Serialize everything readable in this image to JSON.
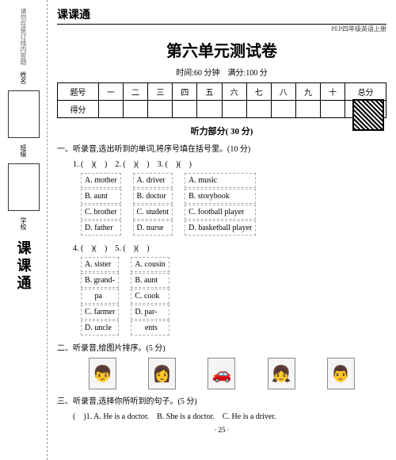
{
  "brand": "课课通",
  "header_sub": "PEP四年级英语上册",
  "title": "第六单元测试卷",
  "meta_time": "时间:60 分钟",
  "meta_score": "满分:100 分",
  "table": {
    "row1": [
      "题号",
      "一",
      "二",
      "三",
      "四",
      "五",
      "六",
      "七",
      "八",
      "九",
      "十",
      "总分"
    ],
    "row2_head": "得分"
  },
  "section_listening": "听力部分( 30 分)",
  "q1": {
    "head": "一、听录音,选出听到的单词,将序号填在括号里。(10 分)",
    "nums": "1. (　)(　)　2. (　)(　)　3. (　)(　)",
    "col1": [
      "A. mother",
      "B. aunt",
      "C. brother",
      "D. father"
    ],
    "col2": [
      "A. driver",
      "B. doctor",
      "C. student",
      "D. nurse"
    ],
    "col3": [
      "A. music",
      "B. storybook",
      "C. football player",
      "D. basketball player"
    ],
    "nums2": "4. (　)(　)　5. (　)(　)",
    "col4": [
      "A. sister",
      "B. grand-",
      "　 pa",
      "C. farmer",
      "D. uncle"
    ],
    "col5": [
      "A. cousin",
      "B. aunt",
      "C. cook",
      "D. par-",
      "　 ents"
    ]
  },
  "q2": {
    "head": "二、听录音,给图片排序。(5 分)"
  },
  "q3": {
    "head": "三、听录音,选择你所听到的句子。(5 分)",
    "line": "(　)1. A. He is a doctor.　B. She is a doctor.　C. He is a driver."
  },
  "page_num": "· 25 ·",
  "left": {
    "note": "请勿在装订线内答题",
    "school": "学校",
    "class": "班级",
    "name": "姓名",
    "logo": "课课通"
  }
}
